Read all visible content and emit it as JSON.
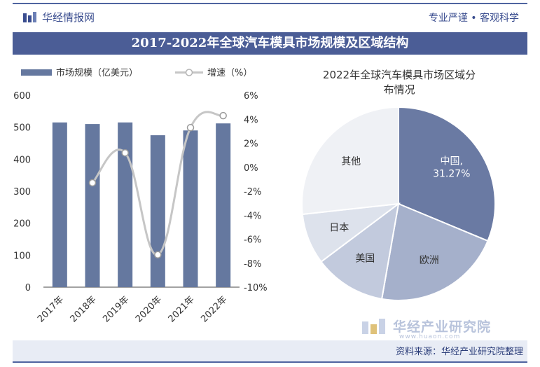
{
  "header": {
    "brand": "华经情报网",
    "slogan": "专业严谨 • 客观科学"
  },
  "banner": {
    "title": "2017-2022年全球汽车模具市场规模及区域结构"
  },
  "chart_data": [
    {
      "type": "bar",
      "legend": [
        "市场规模（亿美元）",
        "增速（%）"
      ],
      "categories": [
        "2017年",
        "2018年",
        "2019年",
        "2020年",
        "2021年",
        "2022年"
      ],
      "series": [
        {
          "name": "市场规模（亿美元）",
          "type": "bar",
          "values": [
            515,
            510,
            515,
            475,
            490,
            512
          ],
          "color": "#65789f"
        },
        {
          "name": "增速（%）",
          "type": "line",
          "values": [
            null,
            -1.3,
            1.2,
            -7.3,
            3.3,
            4.3
          ],
          "color": "#c6c6c6"
        }
      ],
      "ylim": [
        0,
        600
      ],
      "yticks": [
        "0",
        "100",
        "200",
        "300",
        "400",
        "500",
        "600"
      ],
      "y2lim": [
        -10,
        6
      ],
      "y2ticks": [
        "-10%",
        "-8%",
        "-6%",
        "-4%",
        "-2%",
        "0%",
        "2%",
        "4%",
        "6%"
      ]
    },
    {
      "type": "pie",
      "title": "2022年全球汽车模具市场区域分布情况",
      "title_lines": [
        "2022年全球汽车模具市场区域分",
        "布情况"
      ],
      "slices": [
        {
          "label": "中国,",
          "value": 31.27,
          "value_label": "31.27%",
          "color": "#6a7aa3"
        },
        {
          "label": "欧洲",
          "value": 21.5,
          "color": "#a5b0cb"
        },
        {
          "label": "美国",
          "value": 12.0,
          "color": "#c2cadd"
        },
        {
          "label": "日本",
          "value": 8.5,
          "color": "#dde2ec"
        },
        {
          "label": "其他",
          "value": 26.73,
          "color": "#eff1f5"
        }
      ]
    }
  ],
  "watermark": {
    "name": "华经产业研究院",
    "site": "www.huaon.com"
  },
  "source": "资料来源：华经产业研究院整理"
}
